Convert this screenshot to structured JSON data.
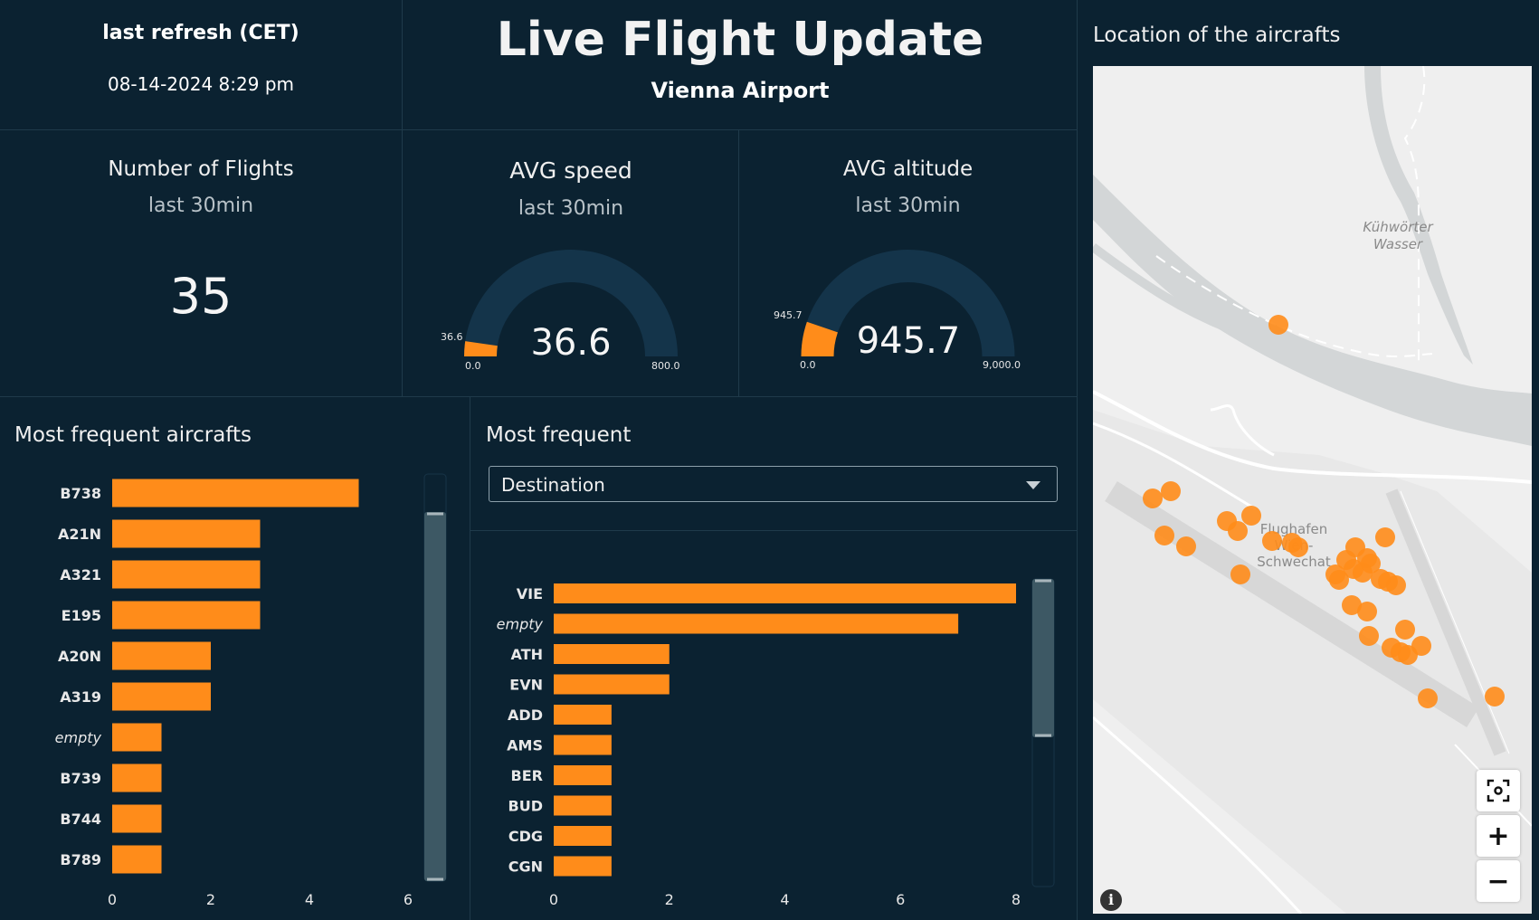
{
  "refresh": {
    "title": "last refresh (CET)",
    "time": "08-14-2024 8:29 pm"
  },
  "header": {
    "title": "Live Flight Update",
    "subtitle": "Vienna Airport"
  },
  "kpis": {
    "flights": {
      "title": "Number of Flights",
      "sub": "last 30min",
      "value": "35"
    },
    "speed": {
      "title": "AVG speed",
      "sub": "last 30min",
      "value": "36.6",
      "marker": "36.6",
      "min": "0.0",
      "max": "800.0",
      "min_num": 0,
      "max_num": 800,
      "value_num": 36.6
    },
    "altitude": {
      "title": "AVG altitude",
      "sub": "last 30min",
      "value": "945.7",
      "marker": "945.7",
      "min": "0.0",
      "max": "9,000.0",
      "min_num": 0,
      "max_num": 9000,
      "value_num": 945.7
    }
  },
  "aircrafts": {
    "title": "Most frequent aircrafts"
  },
  "frequent": {
    "title": "Most frequent",
    "select_value": "Destination"
  },
  "map": {
    "title": "Location of the aircrafts",
    "label_water": "Kühwörter\nWasser",
    "label_airport": "Flughafen\nWien-\nSchwechat",
    "buttons": {
      "fit": "⛶",
      "zoom_in": "+",
      "zoom_out": "−"
    },
    "info": "i"
  },
  "colors": {
    "bar": "#ff8c1a",
    "gauge_track": "#14344a",
    "bg": "#0b2231",
    "marker": "#ff8c1a"
  },
  "chart_data": [
    {
      "type": "bar",
      "orientation": "horizontal",
      "title": "Most frequent aircrafts",
      "categories": [
        "B738",
        "A21N",
        "A321",
        "E195",
        "A20N",
        "A319",
        "empty",
        "B739",
        "B744",
        "B789"
      ],
      "values": [
        5,
        3,
        3,
        3,
        2,
        2,
        1,
        1,
        1,
        1
      ],
      "xlim": [
        0,
        6
      ],
      "xticks": [
        0,
        2,
        4,
        6
      ]
    },
    {
      "type": "bar",
      "orientation": "horizontal",
      "title": "Most frequent",
      "categories": [
        "VIE",
        "empty",
        "ATH",
        "EVN",
        "ADD",
        "AMS",
        "BER",
        "BUD",
        "CDG",
        "CGN"
      ],
      "values": [
        8,
        7,
        2,
        2,
        1,
        1,
        1,
        1,
        1,
        1
      ],
      "xlim": [
        0,
        8
      ],
      "xticks": [
        0,
        2,
        4,
        6,
        8
      ]
    }
  ]
}
